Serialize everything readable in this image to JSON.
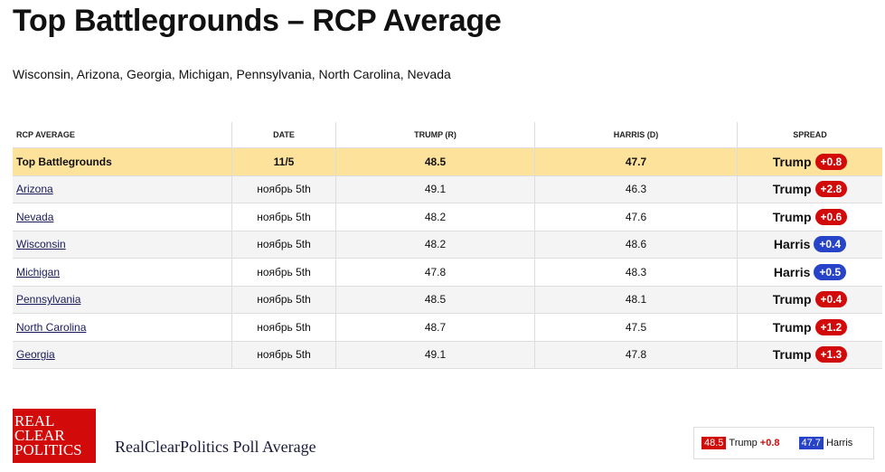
{
  "header": {
    "title": "Top Battlegrounds – RCP Average",
    "subtitle": "Wisconsin, Arizona, Georgia, Michigan, Pennsylvania, North Carolina, Nevada"
  },
  "table": {
    "columns": [
      "RCP AVERAGE",
      "DATE",
      "TRUMP (R)",
      "HARRIS (D)",
      "SPREAD"
    ],
    "summary": {
      "name": "Top Battlegrounds",
      "date": "11/5",
      "trump": 48.5,
      "harris": 47.7,
      "leader": "Trump",
      "spread": "+0.8"
    },
    "rows": [
      {
        "name": "Arizona",
        "date": "ноябрь 5th",
        "trump": 49.1,
        "harris": 46.3,
        "leader": "Trump",
        "spread": "+2.8"
      },
      {
        "name": "Nevada",
        "date": "ноябрь 5th",
        "trump": 48.2,
        "harris": 47.6,
        "leader": "Trump",
        "spread": "+0.6"
      },
      {
        "name": "Wisconsin",
        "date": "ноябрь 5th",
        "trump": 48.2,
        "harris": 48.6,
        "leader": "Harris",
        "spread": "+0.4"
      },
      {
        "name": "Michigan",
        "date": "ноябрь 5th",
        "trump": 47.8,
        "harris": 48.3,
        "leader": "Harris",
        "spread": "+0.5"
      },
      {
        "name": "Pennsylvania",
        "date": "ноябрь 5th",
        "trump": 48.5,
        "harris": 48.1,
        "leader": "Trump",
        "spread": "+0.4"
      },
      {
        "name": "North Carolina",
        "date": "ноябрь 5th",
        "trump": 48.7,
        "harris": 47.5,
        "leader": "Trump",
        "spread": "+1.2"
      },
      {
        "name": "Georgia",
        "date": "ноябрь 5th",
        "trump": 49.1,
        "harris": 47.8,
        "leader": "Trump",
        "spread": "+1.3"
      }
    ]
  },
  "footer": {
    "logo": [
      "REAL",
      "CLEAR",
      "POLITICS"
    ],
    "caption": "RealClearPolitics Poll Average",
    "legend": {
      "trump_value": 48.5,
      "trump_name": "Trump",
      "trump_spread": "+0.8",
      "harris_value": 47.7,
      "harris_name": "Harris"
    }
  }
}
